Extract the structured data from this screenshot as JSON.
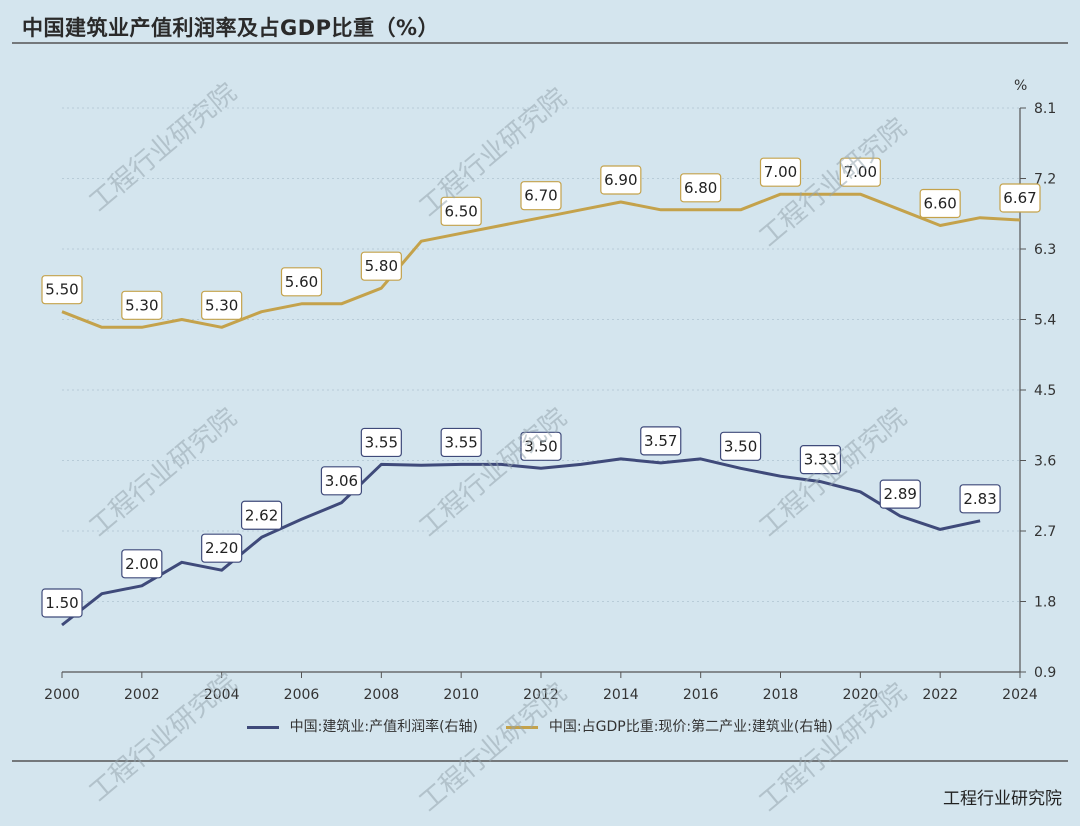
{
  "title": "中国建筑业产值利润率及占GDP比重（%）",
  "source": "工程行业研究院",
  "watermark": "工程行业研究院",
  "chart_data": {
    "type": "line",
    "yunit": "%",
    "ylim": [
      0.9,
      8.1
    ],
    "yticks": [
      "0.9",
      "1.8",
      "2.7",
      "3.6",
      "4.5",
      "5.4",
      "6.3",
      "7.2",
      "8.1"
    ],
    "xlim": [
      2000,
      2024
    ],
    "xticks": [
      "2000",
      "2002",
      "2004",
      "2006",
      "2008",
      "2010",
      "2012",
      "2014",
      "2016",
      "2018",
      "2020",
      "2022",
      "2024"
    ],
    "grid": true,
    "legend_position": "bottom",
    "series": [
      {
        "name": "中国:建筑业:产值利润率(右轴)",
        "color": "#3f4a7a",
        "x": [
          2000,
          2001,
          2002,
          2003,
          2004,
          2005,
          2006,
          2007,
          2008,
          2009,
          2010,
          2011,
          2012,
          2013,
          2014,
          2015,
          2016,
          2017,
          2018,
          2019,
          2020,
          2021,
          2022,
          2023
        ],
        "values": [
          1.5,
          1.9,
          2.0,
          2.3,
          2.2,
          2.62,
          2.85,
          3.06,
          3.55,
          3.54,
          3.55,
          3.55,
          3.5,
          3.55,
          3.62,
          3.57,
          3.62,
          3.5,
          3.4,
          3.33,
          3.2,
          2.89,
          2.72,
          2.83
        ],
        "labels": [
          {
            "x": 2000,
            "text": "1.50"
          },
          {
            "x": 2002,
            "text": "2.00"
          },
          {
            "x": 2004,
            "text": "2.20"
          },
          {
            "x": 2005,
            "text": "2.62"
          },
          {
            "x": 2007,
            "text": "3.06"
          },
          {
            "x": 2008,
            "text": "3.55"
          },
          {
            "x": 2010,
            "text": "3.55"
          },
          {
            "x": 2012,
            "text": "3.50"
          },
          {
            "x": 2015,
            "text": "3.57"
          },
          {
            "x": 2017,
            "text": "3.50"
          },
          {
            "x": 2019,
            "text": "3.33"
          },
          {
            "x": 2021,
            "text": "2.89"
          },
          {
            "x": 2023,
            "text": "2.83"
          }
        ]
      },
      {
        "name": "中国:占GDP比重:现价:第二产业:建筑业(右轴)",
        "color": "#c4a24b",
        "x": [
          2000,
          2001,
          2002,
          2003,
          2004,
          2005,
          2006,
          2007,
          2008,
          2009,
          2010,
          2011,
          2012,
          2013,
          2014,
          2015,
          2016,
          2017,
          2018,
          2019,
          2020,
          2021,
          2022,
          2023,
          2024
        ],
        "values": [
          5.5,
          5.3,
          5.3,
          5.4,
          5.3,
          5.5,
          5.6,
          5.6,
          5.8,
          6.4,
          6.5,
          6.6,
          6.7,
          6.8,
          6.9,
          6.8,
          6.8,
          6.8,
          7.0,
          7.0,
          7.0,
          6.8,
          6.6,
          6.7,
          6.67
        ],
        "labels": [
          {
            "x": 2000,
            "text": "5.50"
          },
          {
            "x": 2002,
            "text": "5.30"
          },
          {
            "x": 2004,
            "text": "5.30"
          },
          {
            "x": 2006,
            "text": "5.60"
          },
          {
            "x": 2008,
            "text": "5.80"
          },
          {
            "x": 2010,
            "text": "6.50"
          },
          {
            "x": 2012,
            "text": "6.70"
          },
          {
            "x": 2014,
            "text": "6.90"
          },
          {
            "x": 2016,
            "text": "6.80"
          },
          {
            "x": 2018,
            "text": "7.00"
          },
          {
            "x": 2020,
            "text": "7.00"
          },
          {
            "x": 2022,
            "text": "6.60"
          },
          {
            "x": 2024,
            "text": "6.67"
          }
        ]
      }
    ]
  }
}
